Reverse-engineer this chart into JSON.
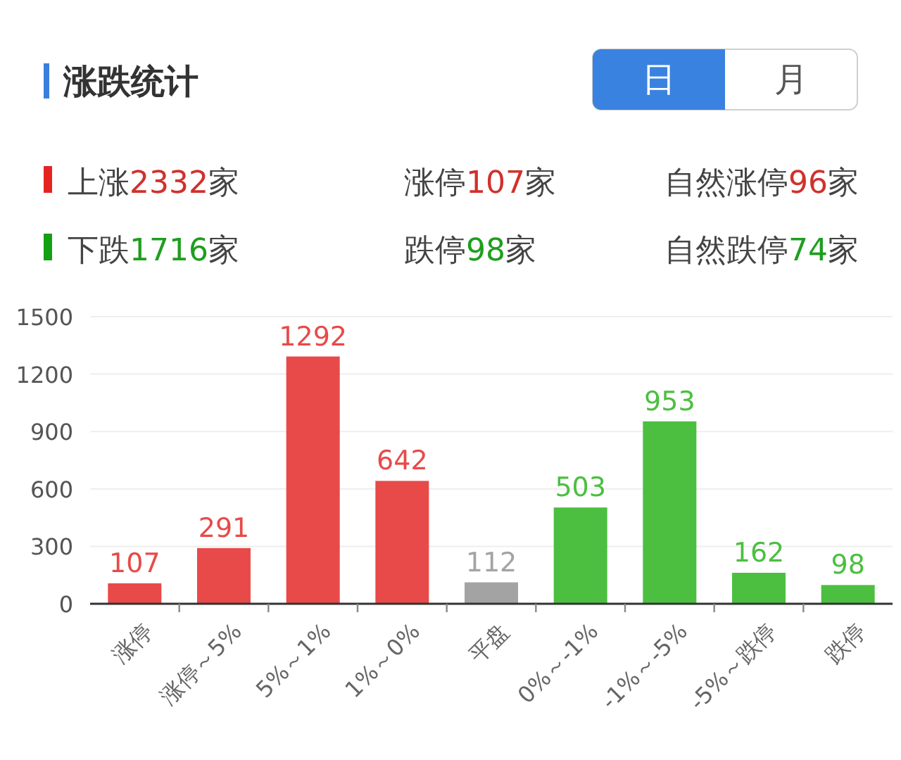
{
  "chart_data": {
    "type": "bar",
    "title": "涨跌统计",
    "categories": [
      "涨停",
      "涨停～5%",
      "5%～1%",
      "1%～0%",
      "平盘",
      "0%～-1%",
      "-1%～-5%",
      "-5%～跌停",
      "跌停"
    ],
    "values": [
      107,
      291,
      1292,
      642,
      112,
      503,
      953,
      162,
      98
    ],
    "colors": [
      "#e84a4a",
      "#e84a4a",
      "#e84a4a",
      "#e84a4a",
      "#a3a3a3",
      "#4cbf40",
      "#4cbf40",
      "#4cbf40",
      "#4cbf40"
    ],
    "ylim": [
      0,
      1500
    ],
    "yticks": [
      0,
      300,
      600,
      900,
      1200,
      1500
    ],
    "grid": "y",
    "data_labels": true,
    "annotations": [
      "日",
      "月",
      "上涨2332家",
      "涨停107家",
      "自然涨停96家",
      "下跌1716家",
      "跌停98家",
      "自然跌停74家"
    ]
  }
}
